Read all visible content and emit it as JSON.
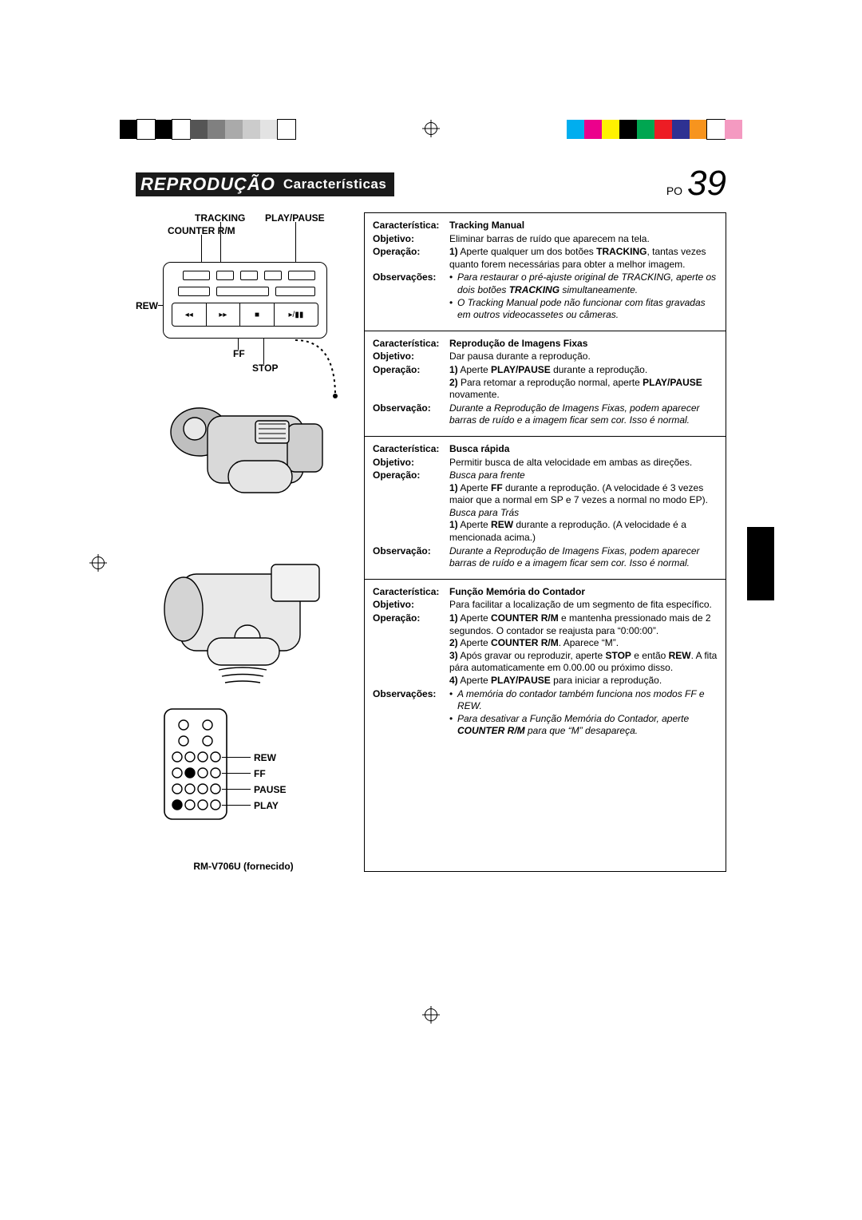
{
  "printer_bars": {
    "left": [
      "#000000",
      "#ffffff",
      "#000000",
      "#ffffff",
      "#555555",
      "#808080",
      "#aaaaaa",
      "#cccccc",
      "#e3e3e3",
      "#ffffff"
    ],
    "right": [
      "#00aeef",
      "#ec008c",
      "#fff200",
      "#000000",
      "#00a651",
      "#ed1c24",
      "#2e3192",
      "#f7941e",
      "#ffffff",
      "#f49ac1"
    ],
    "bar_border": "#000000"
  },
  "header": {
    "title": "REPRODUÇÃO",
    "subtitle": "Características",
    "page_prefix": "PO",
    "page_number": "39"
  },
  "left_labels": {
    "tracking": "TRACKING",
    "playpause": "PLAY/PAUSE",
    "counter": "COUNTER R/M",
    "rew": "REW",
    "ff": "FF",
    "stop": "STOP",
    "remote_rew": "REW",
    "remote_ff": "FF",
    "remote_pause": "PAUSE",
    "remote_play": "PLAY",
    "remote_caption": "RM-V706U (fornecido)"
  },
  "features": [
    {
      "title": "Tracking Manual",
      "rows": [
        {
          "k": "Característica:",
          "v_html": "<b>Tracking Manual</b>"
        },
        {
          "k": "Objetivo:",
          "v_html": "Eliminar barras de ruído que aparecem na tela."
        },
        {
          "k": "Operação:",
          "v_html": "<b>1)</b> Aperte qualquer um dos botões <b>TRACKING</b>, tantas vezes quanto forem necessárias para obter a melhor imagem."
        },
        {
          "k": "Observações:",
          "v_html": "<ul><li><i>Para restaurar o pré-ajuste original de TRACKING, aperte os dois botões <b>TRACKING</b> simultaneamente.</i></li><li><i>O Tracking Manual pode não funcionar com fitas gravadas em outros videocassetes ou câmeras.</i></li></ul>"
        }
      ]
    },
    {
      "title": "Reprodução de Imagens Fixas",
      "rows": [
        {
          "k": "Característica:",
          "v_html": "<b>Reprodução de Imagens Fixas</b>"
        },
        {
          "k": "Objetivo:",
          "v_html": "Dar pausa durante a reprodução."
        },
        {
          "k": "Operação:",
          "v_html": "<b>1)</b> Aperte <b>PLAY/PAUSE</b> durante a reprodução.<br><b>2)</b> Para retomar a reprodução normal, aperte <b>PLAY/PAUSE</b> novamente."
        },
        {
          "k": "Observação:",
          "v_html": "<i>Durante a Reprodução de Imagens Fixas, podem aparecer barras de ruído e a imagem ficar sem cor. Isso é normal.</i>"
        }
      ]
    },
    {
      "title": "Busca rápida",
      "rows": [
        {
          "k": "Característica:",
          "v_html": "<b>Busca rápida</b>"
        },
        {
          "k": "Objetivo:",
          "v_html": "Permitir busca de alta velocidade em ambas as direções."
        },
        {
          "k": "Operação:",
          "v_html": "<i>Busca para frente</i><br><b>1)</b> Aperte <b>FF</b> durante a reprodução. (A velocidade é 3 vezes maior que a normal em SP e 7 vezes a normal no modo EP).<br><i>Busca para Trás</i><br><b>1)</b> Aperte <b>REW</b> durante a reprodução. (A velocidade é a mencionada acima.)"
        },
        {
          "k": "Observação:",
          "v_html": "<i>Durante a Reprodução de Imagens Fixas, podem aparecer barras de ruído e a imagem ficar sem cor. Isso é normal.</i>"
        }
      ]
    },
    {
      "title": "Função Memória do Contador",
      "rows": [
        {
          "k": "Característica:",
          "v_html": "<b>Função Memória do Contador</b>"
        },
        {
          "k": "Objetivo:",
          "v_html": "Para facilitar a localização de um segmento de fita específico."
        },
        {
          "k": "Operação:",
          "v_html": "<b>1)</b> Aperte <b>COUNTER R/M</b> e mantenha pressionado mais de 2 segundos. O contador se reajusta para “0:00:00”.<br><b>2)</b> Aperte <b>COUNTER R/M</b>. Aparece “M”.<br><b>3)</b> Após gravar ou reproduzir, aperte <b>STOP</b> e então <b>REW</b>. A fita pára automaticamente em 0.00.00 ou próximo disso.<br><b>4)</b> Aperte <b>PLAY/PAUSE</b> para iniciar a reprodução."
        },
        {
          "k": "Observações:",
          "v_html": "<ul><li><i>A memória do contador também funciona nos modos FF e REW.</i></li><li><i>Para desativar a Função Memória do Contador, aperte <b>COUNTER R/M</b> para que “M” desapareça.</i></li></ul>"
        }
      ]
    }
  ]
}
